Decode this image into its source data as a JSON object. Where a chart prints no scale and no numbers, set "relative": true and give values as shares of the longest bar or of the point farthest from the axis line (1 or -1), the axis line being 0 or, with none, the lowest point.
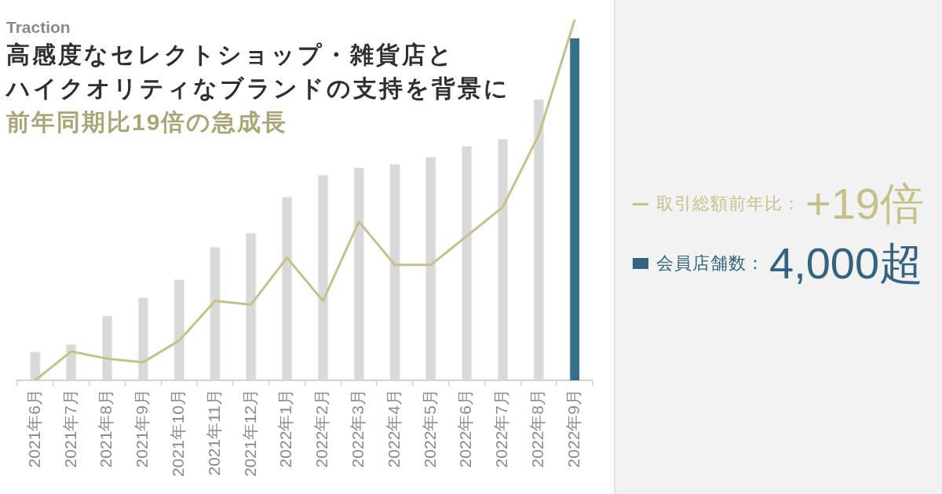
{
  "chart_data": {
    "type": "bar",
    "title": "高感度なセレクトショップ・雑貨店とハイクオリティなブランドの支持を背景に",
    "subtitle": "前年同期比19倍の急成長",
    "annotations": [
      "Traction",
      "+19倍",
      "4,000超"
    ],
    "categories": [
      "2021年6月",
      "2021年7月",
      "2021年8月",
      "2021年9月",
      "2021年10月",
      "2021年11月",
      "2021年12月",
      "2022年1月",
      "2022年2月",
      "2022年3月",
      "2022年4月",
      "2022年5月",
      "2022年6月",
      "2022年7月",
      "2022年8月",
      "2022年9月"
    ],
    "relative": true,
    "legend": "right",
    "marker": "none",
    "series": [
      {
        "name": "取引総額前年比：",
        "type": "line",
        "color": "#c8c08a",
        "values": [
          0,
          0.08,
          0.06,
          0.05,
          0.11,
          0.22,
          0.21,
          0.34,
          0.22,
          0.44,
          0.32,
          0.32,
          0.4,
          0.48,
          0.68,
          1
        ]
      },
      {
        "name": "会員店舗数：",
        "color": "#33637f",
        "colors": [
          "#d9d9d9",
          "#d9d9d9",
          "#d9d9d9",
          "#d9d9d9",
          "#d9d9d9",
          "#d9d9d9",
          "#d9d9d9",
          "#d9d9d9",
          "#d9d9d9",
          "#d9d9d9",
          "#d9d9d9",
          "#d9d9d9",
          "#d9d9d9",
          "#d9d9d9",
          "#d9d9d9",
          "#356f89"
        ],
        "values": [
          0.08,
          0.1,
          0.18,
          0.23,
          0.28,
          0.37,
          0.41,
          0.51,
          0.57,
          0.59,
          0.6,
          0.62,
          0.65,
          0.67,
          0.78,
          0.95
        ]
      }
    ]
  }
}
